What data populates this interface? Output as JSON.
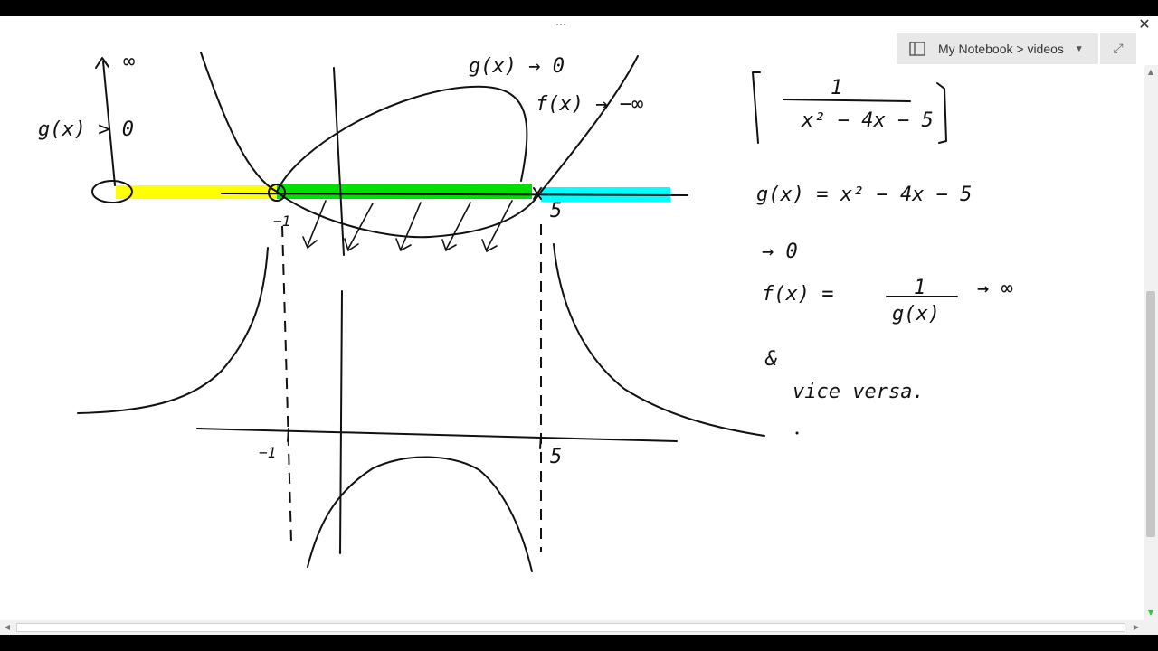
{
  "window": {
    "close_glyph": "✕",
    "grip_glyph": "⋯"
  },
  "notebook": {
    "breadcrumb": "My Notebook > videos",
    "icon": "notebook-icon",
    "dropdown_icon": "chevron-down-icon",
    "expand_icon": "expand-icon",
    "expand_glyph": "⤢"
  },
  "colors": {
    "highlight_yellow": "#ffff00",
    "highlight_green": "#00e000",
    "highlight_cyan": "#00ffff",
    "ink": "#111111"
  },
  "handwriting": {
    "g_to_zero": "g(x) → 0",
    "f_to_neg_inf": "f(x) → −∞",
    "infinity_top": "∞",
    "g_gt_zero": "g(x) > 0",
    "label_neg1_upper": "−1",
    "label_5_upper": "5",
    "label_neg1_lower": "−1",
    "label_5_lower": "5",
    "boxed_fraction_num": "1",
    "boxed_fraction_den": "x² − 4x − 5",
    "g_def": "g(x)  =  x² − 4x − 5",
    "arrow_zero": "→ 0",
    "f_def_lhs": "f(x)  =",
    "f_def_num": "1",
    "f_def_den": "g(x)",
    "f_def_arrow": "→ ∞",
    "ampersand": "&",
    "vice_versa": "vice   versa."
  }
}
